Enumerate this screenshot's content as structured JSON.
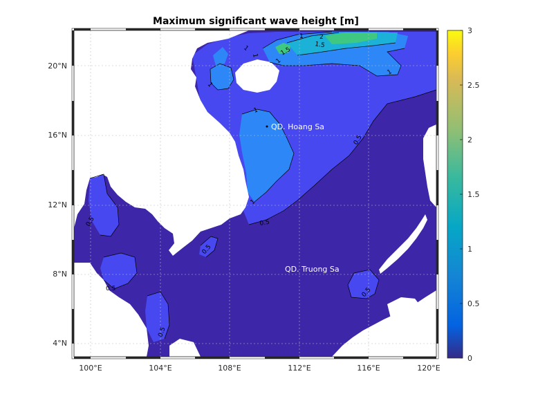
{
  "title": "Maximum significant wave height [m]",
  "x_ticks": [
    "100°E",
    "104°E",
    "108°E",
    "112°E",
    "116°E",
    "120°E"
  ],
  "y_ticks": [
    "4°N",
    "8°N",
    "12°N",
    "16°N",
    "20°N"
  ],
  "colorbar": {
    "ticks": [
      "0",
      "0.5",
      "1",
      "1.5",
      "2",
      "2.5",
      "3"
    ],
    "colormap": "parula",
    "colors": [
      "#3e26a8",
      "#4748f0",
      "#2e87f7",
      "#1cb1d7",
      "#3fc882",
      "#dcbc2c",
      "#f9fb15"
    ]
  },
  "places": {
    "hoang_sa": "QD. Hoang Sa",
    "truong_sa": "QD. Truong Sa"
  },
  "contour_labels": [
    "1",
    "1",
    "1",
    "1.5",
    "1.5",
    "2",
    "1",
    "1",
    "1",
    "0.5",
    "1",
    "0.5",
    "0.5",
    "0.5",
    "0.5",
    "0.5",
    "0.5",
    "1"
  ],
  "colors": {
    "land": "#ffffff",
    "level0": "#3e26a8",
    "level05": "#4748f0",
    "level1": "#2e87f7",
    "level15": "#1cb1d7",
    "level2": "#3fc882"
  }
}
